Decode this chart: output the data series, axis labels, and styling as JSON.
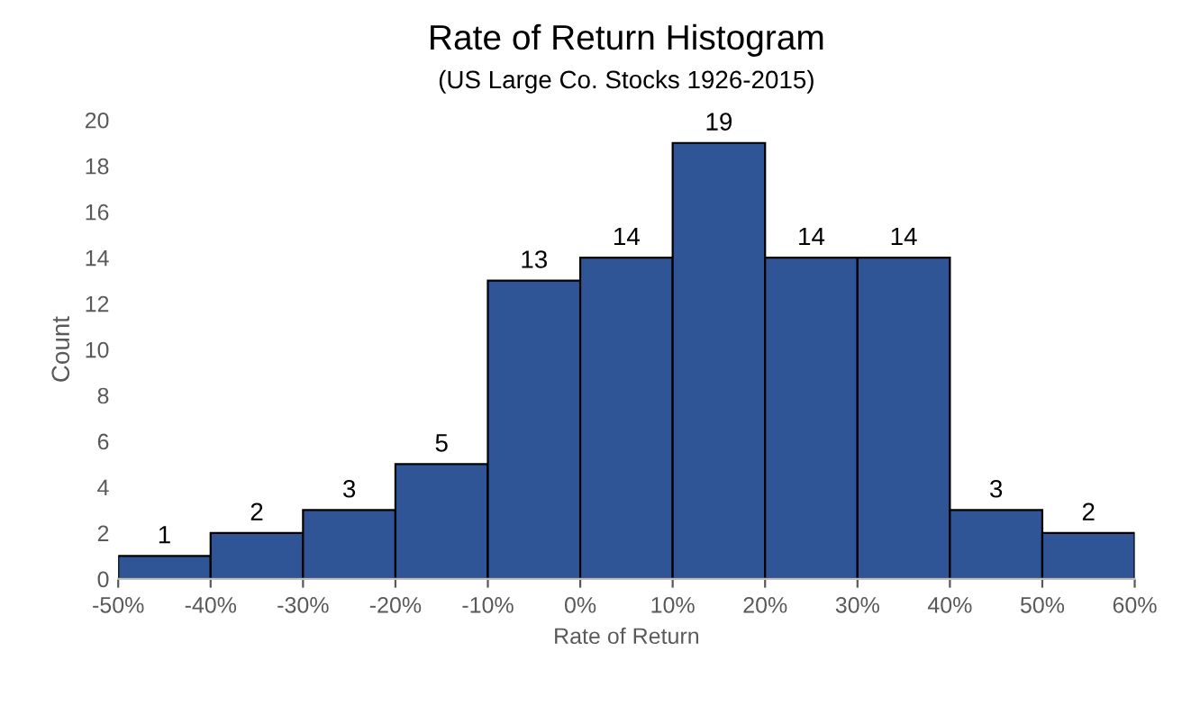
{
  "chart_data": {
    "type": "histogram",
    "title": "Rate of Return Histogram",
    "subtitle": "(US Large Co. Stocks 1926-2015)",
    "xlabel": "Rate of Return",
    "ylabel": "Count",
    "bins": [
      -50,
      -40,
      -30,
      -20,
      -10,
      0,
      10,
      20,
      30,
      40,
      50,
      60
    ],
    "values": [
      1,
      2,
      3,
      5,
      13,
      14,
      19,
      14,
      14,
      3,
      2
    ],
    "color": "#2f5597",
    "data_labels": true,
    "grid": false,
    "legend": false,
    "xlim": [
      -50,
      60
    ],
    "xticks": [
      {
        "value": -50,
        "label": "-50%"
      },
      {
        "value": -40,
        "label": "-40%"
      },
      {
        "value": -30,
        "label": "-30%"
      },
      {
        "value": -20,
        "label": "-20%"
      },
      {
        "value": -10,
        "label": "-10%"
      },
      {
        "value": 0,
        "label": "0%"
      },
      {
        "value": 10,
        "label": "10%"
      },
      {
        "value": 20,
        "label": "20%"
      },
      {
        "value": 30,
        "label": "30%"
      },
      {
        "value": 40,
        "label": "40%"
      },
      {
        "value": 50,
        "label": "50%"
      },
      {
        "value": 60,
        "label": "60%"
      }
    ],
    "ylim": [
      0,
      20
    ],
    "yticks": [
      0,
      2,
      4,
      6,
      8,
      10,
      12,
      14,
      16,
      18,
      20
    ]
  }
}
